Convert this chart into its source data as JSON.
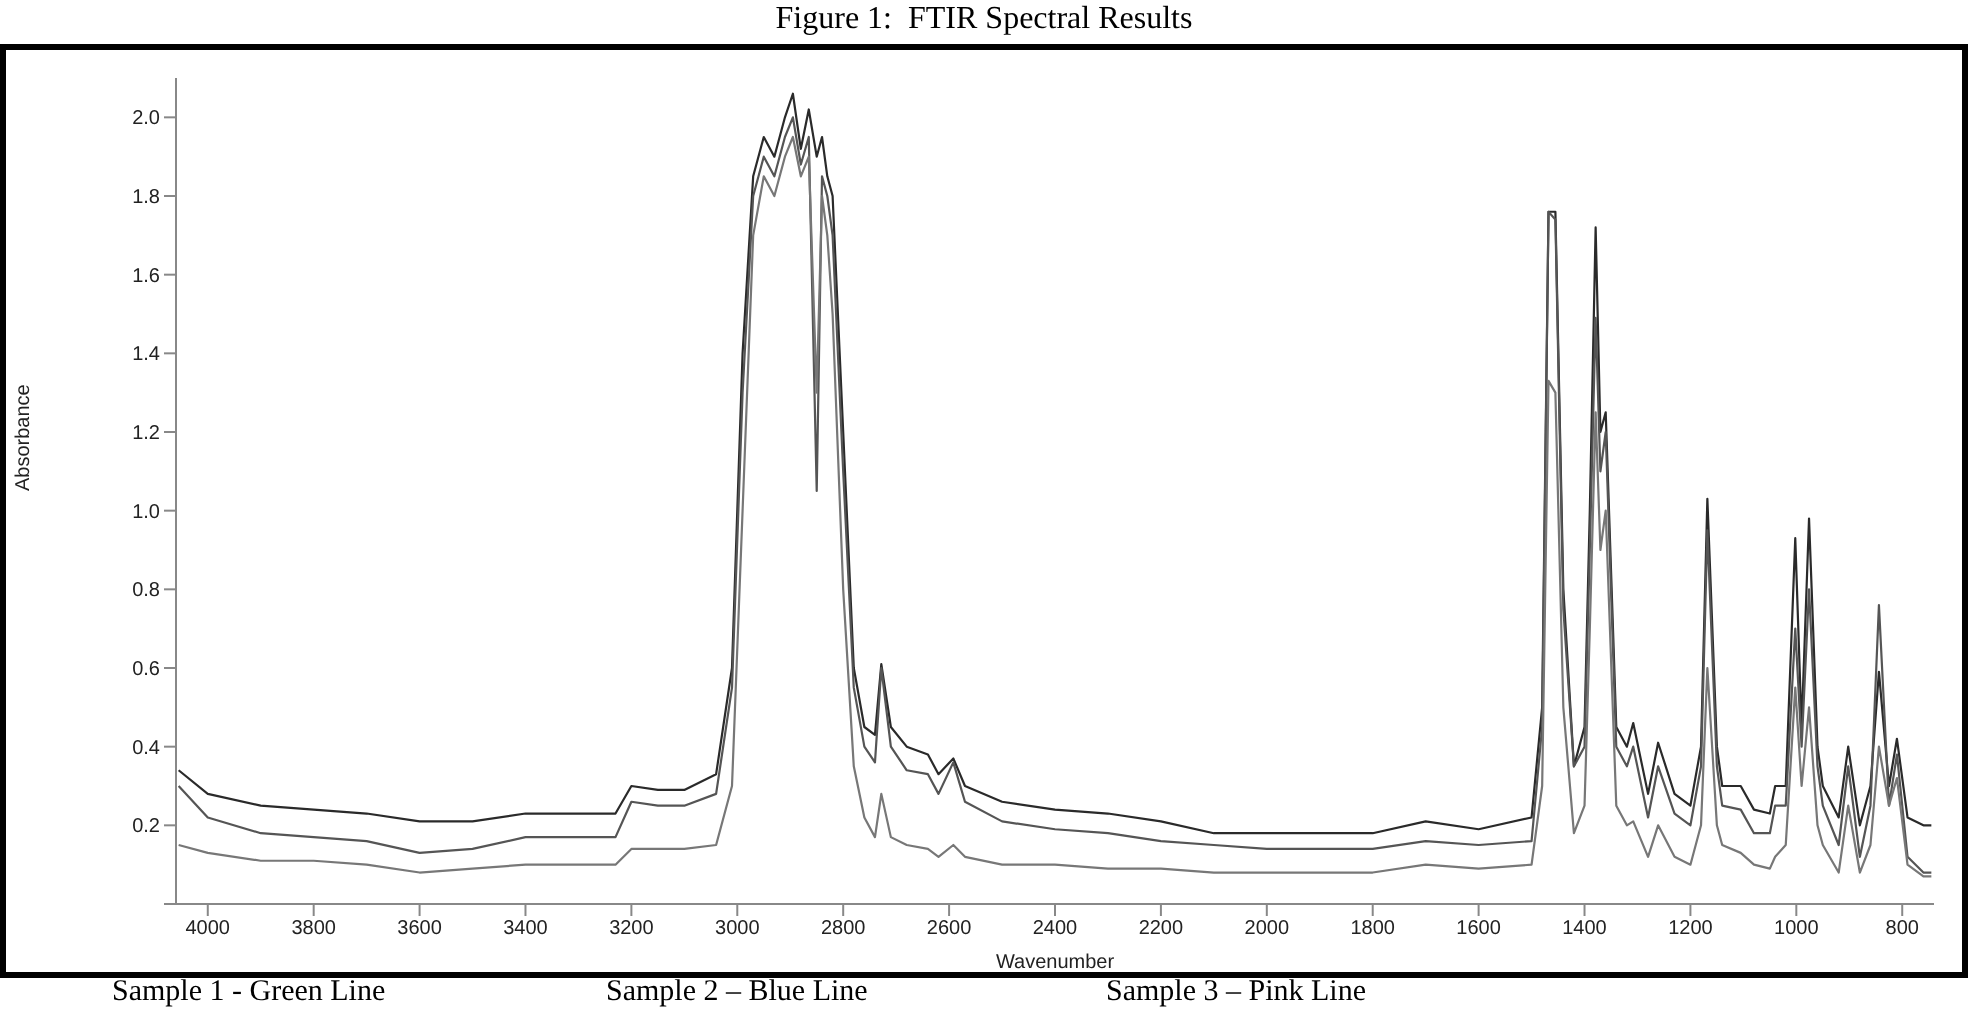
{
  "chart_data": {
    "type": "line",
    "title": "Figure 1:  FTIR Spectral Results",
    "xlabel": "Wavenumber",
    "ylabel": "Absorbance",
    "annotations": [
      "Sample 1 - Green Line",
      "Sample 2 – Blue Line",
      "Sample 3 – Pink Line"
    ],
    "x": [
      4055,
      4000,
      3900,
      3800,
      3700,
      3600,
      3500,
      3400,
      3300,
      3230,
      3200,
      3150,
      3100,
      3040,
      3010,
      2990,
      2970,
      2950,
      2930,
      2910,
      2895,
      2880,
      2865,
      2850,
      2840,
      2830,
      2820,
      2800,
      2780,
      2760,
      2740,
      2728,
      2710,
      2680,
      2640,
      2620,
      2592,
      2570,
      2500,
      2400,
      2300,
      2200,
      2100,
      2000,
      1900,
      1800,
      1700,
      1600,
      1500,
      1480,
      1468,
      1455,
      1440,
      1420,
      1400,
      1390,
      1379,
      1370,
      1360,
      1340,
      1320,
      1308,
      1280,
      1261,
      1230,
      1200,
      1180,
      1168,
      1150,
      1140,
      1105,
      1080,
      1050,
      1040,
      1020,
      1002,
      990,
      976,
      960,
      950,
      920,
      902,
      880,
      860,
      844,
      825,
      810,
      790,
      760,
      745
    ],
    "series": [
      {
        "color": "#2a2a2a",
        "values": [
          0.34,
          0.28,
          0.25,
          0.24,
          0.23,
          0.21,
          0.21,
          0.23,
          0.23,
          0.23,
          0.3,
          0.29,
          0.29,
          0.33,
          0.6,
          1.4,
          1.85,
          1.95,
          1.9,
          2.0,
          2.06,
          1.92,
          2.02,
          1.9,
          1.95,
          1.85,
          1.8,
          1.2,
          0.6,
          0.45,
          0.43,
          0.61,
          0.45,
          0.4,
          0.38,
          0.33,
          0.37,
          0.3,
          0.26,
          0.24,
          0.23,
          0.21,
          0.18,
          0.18,
          0.18,
          0.18,
          0.21,
          0.19,
          0.22,
          0.5,
          1.76,
          1.76,
          0.8,
          0.35,
          0.45,
          1.0,
          1.72,
          1.2,
          1.25,
          0.45,
          0.4,
          0.46,
          0.28,
          0.41,
          0.28,
          0.25,
          0.4,
          1.03,
          0.4,
          0.3,
          0.3,
          0.24,
          0.23,
          0.3,
          0.3,
          0.93,
          0.45,
          0.98,
          0.4,
          0.3,
          0.22,
          0.4,
          0.2,
          0.3,
          0.59,
          0.3,
          0.42,
          0.22,
          0.2,
          0.2
        ]
      },
      {
        "color": "#555555",
        "values": [
          0.3,
          0.22,
          0.18,
          0.17,
          0.16,
          0.13,
          0.14,
          0.17,
          0.17,
          0.17,
          0.26,
          0.25,
          0.25,
          0.28,
          0.55,
          1.3,
          1.8,
          1.9,
          1.85,
          1.95,
          2.0,
          1.88,
          1.95,
          1.05,
          1.85,
          1.8,
          1.7,
          1.1,
          0.55,
          0.4,
          0.36,
          0.6,
          0.4,
          0.34,
          0.33,
          0.28,
          0.36,
          0.26,
          0.21,
          0.19,
          0.18,
          0.16,
          0.15,
          0.14,
          0.14,
          0.14,
          0.16,
          0.15,
          0.16,
          0.45,
          1.76,
          1.74,
          0.75,
          0.35,
          0.4,
          0.9,
          1.49,
          1.1,
          1.2,
          0.4,
          0.35,
          0.4,
          0.22,
          0.35,
          0.23,
          0.2,
          0.35,
          0.95,
          0.35,
          0.25,
          0.24,
          0.18,
          0.18,
          0.25,
          0.25,
          0.7,
          0.4,
          0.8,
          0.35,
          0.25,
          0.15,
          0.35,
          0.12,
          0.25,
          0.76,
          0.25,
          0.38,
          0.12,
          0.08,
          0.08
        ]
      },
      {
        "color": "#777777",
        "values": [
          0.15,
          0.13,
          0.11,
          0.11,
          0.1,
          0.08,
          0.09,
          0.1,
          0.1,
          0.1,
          0.14,
          0.14,
          0.14,
          0.15,
          0.3,
          1.0,
          1.7,
          1.85,
          1.8,
          1.9,
          1.95,
          1.85,
          1.9,
          1.3,
          1.8,
          1.7,
          1.5,
          0.8,
          0.35,
          0.22,
          0.17,
          0.28,
          0.17,
          0.15,
          0.14,
          0.12,
          0.15,
          0.12,
          0.1,
          0.1,
          0.09,
          0.09,
          0.08,
          0.08,
          0.08,
          0.08,
          0.1,
          0.09,
          0.1,
          0.3,
          1.33,
          1.3,
          0.5,
          0.18,
          0.25,
          0.7,
          1.25,
          0.9,
          1.0,
          0.25,
          0.2,
          0.21,
          0.12,
          0.2,
          0.12,
          0.1,
          0.2,
          0.6,
          0.2,
          0.15,
          0.13,
          0.1,
          0.09,
          0.12,
          0.15,
          0.55,
          0.3,
          0.5,
          0.2,
          0.15,
          0.08,
          0.25,
          0.08,
          0.15,
          0.4,
          0.25,
          0.32,
          0.1,
          0.07,
          0.07
        ]
      }
    ],
    "xlim": [
      4060,
      740
    ],
    "xticks": [
      4000,
      3800,
      3600,
      3400,
      3200,
      3000,
      2800,
      2600,
      2400,
      2200,
      2000,
      1800,
      1600,
      1400,
      1200,
      1000,
      800
    ],
    "ylim": [
      0,
      2.1
    ],
    "yticks": [
      {
        "value": 0,
        "label": null
      },
      {
        "value": 0.2,
        "label": "0.2"
      },
      {
        "value": 0.4,
        "label": "0.4"
      },
      {
        "value": 0.6,
        "label": "0.6"
      },
      {
        "value": 0.8,
        "label": "0.8"
      },
      {
        "value": 1.0,
        "label": "1.0"
      },
      {
        "value": 1.2,
        "label": "1.2"
      },
      {
        "value": 1.4,
        "label": "1.4"
      },
      {
        "value": 1.6,
        "label": "1.6"
      },
      {
        "value": 1.8,
        "label": "1.8"
      },
      {
        "value": 2.0,
        "label": "2.0"
      }
    ],
    "grid": false,
    "legend": false,
    "marker": "none",
    "line_style": "solid"
  }
}
